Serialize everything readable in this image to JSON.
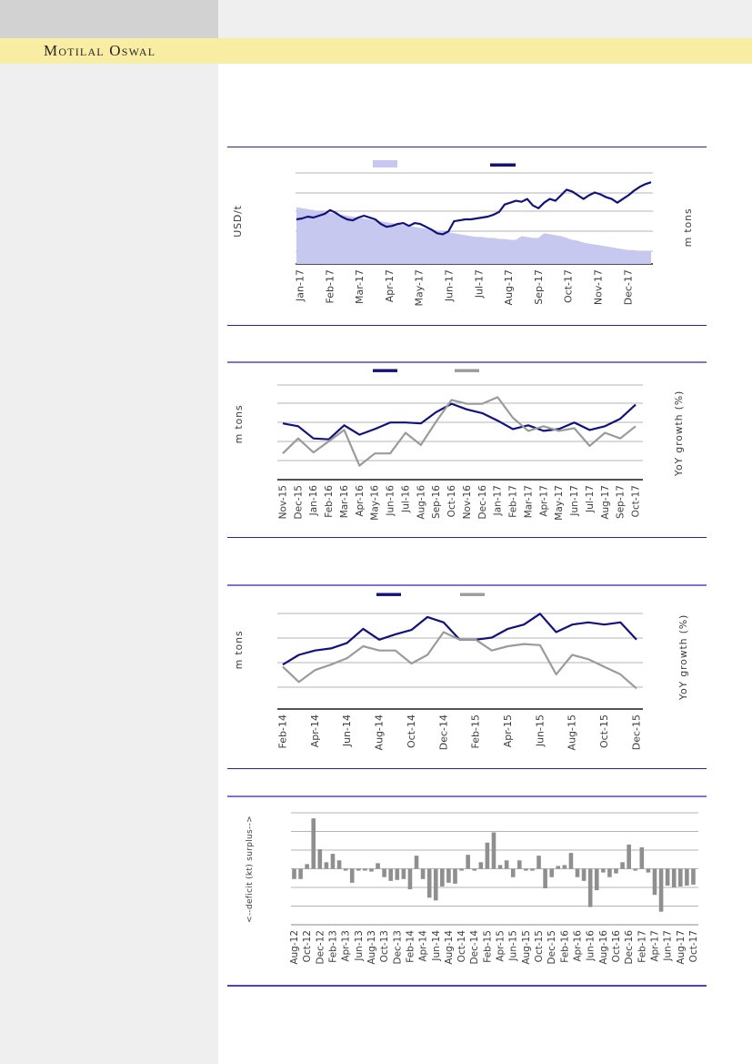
{
  "page": {
    "logo_text": "Motilal Oswal"
  },
  "colors": {
    "band_yellow": "#f9eda4",
    "sidebar_gray": "#efeff0",
    "topbox_gray": "#d2d2d3",
    "navy": "#12127d",
    "lavender": "#c7c8ef",
    "gray_line": "#9b9b9b",
    "bar_gray": "#8f8f8f",
    "gridline": "#b5b5b5",
    "axis": "#1a1a1a",
    "tick_text": "#3c3c3c",
    "rule_dark": "#2c2487",
    "rule_light": "#7e74cb"
  },
  "chart_data": [
    {
      "id": "chart-1",
      "type": "area+line",
      "title": "",
      "left_axis_label": "USD/t",
      "right_axis_label": "m tons",
      "x_tick_labels": [
        "Jan-17",
        "Feb-17",
        "Mar-17",
        "Apr-17",
        "May-17",
        "Jun-17",
        "Jul-17",
        "Aug-17",
        "Sep-17",
        "Oct-17",
        "Nov-17",
        "Dec-17"
      ],
      "y_values_unit": "relative 0-100 of plot height (no numeric tick labels visible)",
      "grid": "horizontal",
      "legend": [
        {
          "swatch": "area",
          "color": "#c7c8ef",
          "label": ""
        },
        {
          "swatch": "line",
          "color": "#12127d",
          "label": ""
        }
      ],
      "series": [
        {
          "name": "area-series",
          "style": "area",
          "color": "#c7c8ef",
          "values": [
            61,
            60,
            59,
            58,
            57,
            56,
            55,
            54,
            53,
            52,
            51,
            50,
            49,
            48,
            47,
            46,
            45,
            44,
            43,
            42,
            41,
            40,
            39,
            38,
            37,
            36,
            35,
            34,
            33,
            32,
            31,
            30,
            29,
            29,
            28,
            28,
            27,
            27,
            26,
            26,
            30,
            29,
            28,
            28,
            33,
            32,
            31,
            30,
            28,
            26,
            25,
            23,
            22,
            21,
            20,
            19,
            18,
            17,
            16,
            15,
            15,
            14,
            14,
            14
          ]
        },
        {
          "name": "line-series",
          "style": "line",
          "color": "#12127d",
          "values": [
            48,
            49,
            51,
            50,
            52,
            54,
            58,
            55,
            51,
            48,
            47,
            50,
            52,
            50,
            48,
            43,
            40,
            41,
            43,
            44,
            41,
            44,
            43,
            40,
            37,
            33,
            32,
            35,
            46,
            47,
            48,
            48,
            49,
            50,
            51,
            53,
            56,
            64,
            66,
            68,
            67,
            70,
            63,
            60,
            66,
            70,
            68,
            74,
            80,
            78,
            74,
            70,
            74,
            77,
            75,
            72,
            70,
            66,
            70,
            74,
            79,
            83,
            86,
            88
          ]
        }
      ]
    },
    {
      "id": "chart-2",
      "type": "line",
      "title": "",
      "left_axis_label": "m tons",
      "right_axis_label": "YoY growth (%)",
      "x_tick_labels": [
        "Nov-15",
        "Dec-15",
        "Jan-16",
        "Feb-16",
        "Mar-16",
        "Apr-16",
        "May-16",
        "Jun-16",
        "Jul-16",
        "Aug-16",
        "Sep-16",
        "Oct-16",
        "Nov-16",
        "Dec-16",
        "Jan-17",
        "Feb-17",
        "Mar-17",
        "Apr-17",
        "May-17",
        "Jun-17",
        "Jul-17",
        "Aug-17",
        "Sep-17",
        "Oct-17"
      ],
      "y_values_unit": "relative 0-100 of plot height (no numeric tick labels visible)",
      "grid": "horizontal",
      "legend": [
        {
          "swatch": "line",
          "color": "#12127d",
          "label": ""
        },
        {
          "swatch": "line",
          "color": "#9b9b9b",
          "label": ""
        }
      ],
      "series": [
        {
          "name": "navy-series",
          "style": "line",
          "color": "#12127d",
          "values": [
            60,
            57,
            44,
            43,
            58,
            48,
            54,
            61,
            61,
            60,
            72,
            81,
            75,
            71,
            63,
            54,
            58,
            52,
            54,
            61,
            53,
            57,
            65,
            80
          ]
        },
        {
          "name": "gray-series",
          "style": "line",
          "color": "#9b9b9b",
          "values": [
            28,
            44,
            29,
            41,
            53,
            15,
            28,
            28,
            50,
            37,
            62,
            85,
            81,
            81,
            88,
            66,
            52,
            57,
            52,
            55,
            36,
            50,
            44,
            57
          ]
        }
      ]
    },
    {
      "id": "chart-3",
      "type": "line",
      "title": "",
      "left_axis_label": "m tons",
      "right_axis_label": "YoY growth (%)",
      "x_months": [
        "Feb-14",
        "Mar-14",
        "Apr-14",
        "May-14",
        "Jun-14",
        "Jul-14",
        "Aug-14",
        "Sep-14",
        "Oct-14",
        "Nov-14",
        "Dec-14",
        "Jan-15",
        "Feb-15",
        "Mar-15",
        "Apr-15",
        "May-15",
        "Jun-15",
        "Jul-15",
        "Aug-15",
        "Sep-15",
        "Oct-15",
        "Nov-15",
        "Dec-15"
      ],
      "x_tick_labels": [
        "Feb-14",
        "Apr-14",
        "Jun-14",
        "Aug-14",
        "Oct-14",
        "Dec-14",
        "Feb-15",
        "Apr-15",
        "Jun-15",
        "Aug-15",
        "Oct-15",
        "Dec-15"
      ],
      "y_values_unit": "relative 0-100 of plot height (no numeric tick labels visible)",
      "grid": "horizontal",
      "legend": [
        {
          "swatch": "line",
          "color": "#12127d",
          "label": ""
        },
        {
          "swatch": "line",
          "color": "#9b9b9b",
          "label": ""
        }
      ],
      "series": [
        {
          "name": "navy-series",
          "style": "line",
          "color": "#12127d",
          "values": [
            41,
            50,
            54,
            56,
            61,
            74,
            64,
            69,
            73,
            85,
            80,
            64,
            64,
            66,
            74,
            78,
            88,
            71,
            78,
            80,
            78,
            80,
            64
          ]
        },
        {
          "name": "gray-series",
          "style": "line",
          "color": "#9b9b9b",
          "values": [
            39,
            25,
            36,
            41,
            47,
            58,
            54,
            54,
            42,
            50,
            71,
            64,
            64,
            54,
            58,
            60,
            59,
            32,
            50,
            46,
            39,
            32,
            19
          ]
        }
      ]
    },
    {
      "id": "chart-4",
      "type": "bar",
      "title": "",
      "left_axis_label": "<--deficit    (kt)    surplus-->",
      "x_range": "Aug-12 to Oct-17, monthly bars",
      "x_tick_labels": [
        "Aug-12",
        "Oct-12",
        "Dec-12",
        "Feb-13",
        "Apr-13",
        "Jun-13",
        "Aug-13",
        "Oct-13",
        "Dec-13",
        "Feb-14",
        "Apr-14",
        "Jun-14",
        "Aug-14",
        "Oct-14",
        "Dec-14",
        "Feb-15",
        "Apr-15",
        "Jun-15",
        "Aug-15",
        "Oct-15",
        "Dec-15",
        "Feb-16",
        "Apr-16",
        "Jun-16",
        "Aug-16",
        "Oct-16",
        "Dec-16",
        "Feb-17",
        "Apr-17",
        "Jun-17",
        "Aug-17",
        "Oct-17"
      ],
      "y_unit": "gridline intervals (no numeric tick labels visible)",
      "ylim": [
        -3,
        3
      ],
      "bar_color": "#8f8f8f",
      "values": [
        -0.55,
        -0.55,
        0.25,
        2.7,
        1.05,
        0.35,
        0.8,
        0.45,
        -0.1,
        -0.75,
        -0.1,
        -0.1,
        -0.15,
        0.3,
        -0.45,
        -0.65,
        -0.6,
        -0.55,
        -1.1,
        0.7,
        -0.55,
        -1.55,
        -1.7,
        -0.95,
        -0.75,
        -0.8,
        -0.1,
        0.75,
        -0.1,
        0.35,
        1.4,
        1.95,
        0.2,
        0.45,
        -0.45,
        0.45,
        -0.1,
        -0.1,
        0.7,
        -1.05,
        -0.45,
        0.15,
        0.2,
        0.85,
        -0.45,
        -0.65,
        -2.05,
        -1.15,
        -0.2,
        -0.45,
        -0.25,
        0.35,
        1.3,
        -0.1,
        1.15,
        -0.2,
        -1.4,
        -2.3,
        -0.9,
        -1.0,
        -0.95,
        -0.9,
        -0.85
      ]
    }
  ]
}
